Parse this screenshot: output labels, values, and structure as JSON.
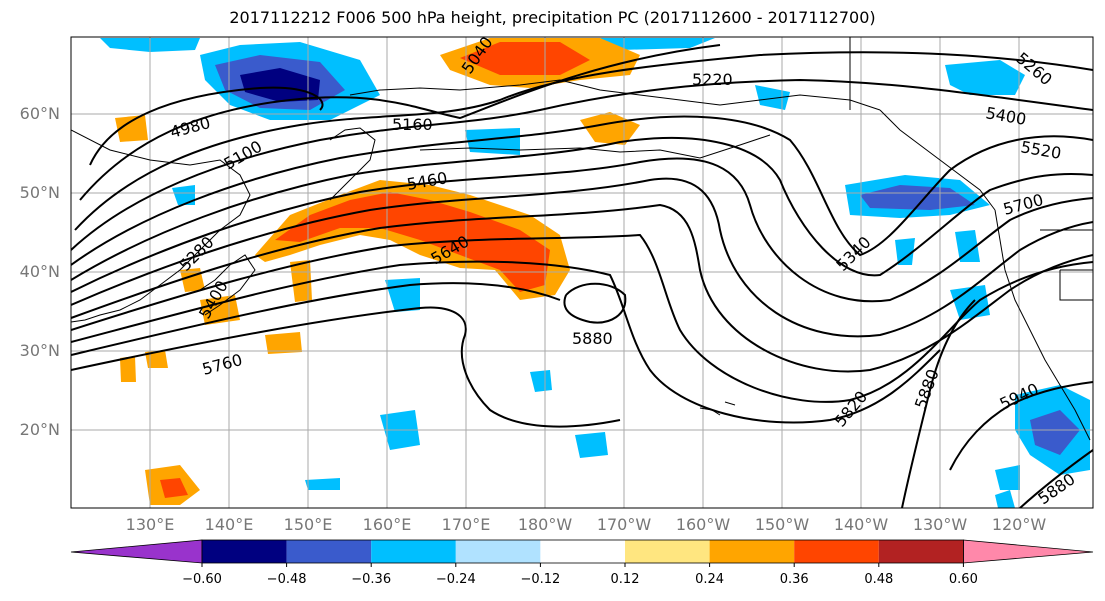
{
  "title": "2017112212 F006 500 hPa height, precipitation PC (2017112600 - 2017112700)",
  "lat_labels": [
    "60°N",
    "50°N",
    "40°N",
    "30°N",
    "20°N"
  ],
  "lon_labels": [
    "130°E",
    "140°E",
    "150°E",
    "160°E",
    "170°E",
    "180°W",
    "170°W",
    "160°W",
    "150°W",
    "140°W",
    "130°W",
    "120°W"
  ],
  "contour_labels": [
    "4980",
    "5100",
    "5040",
    "5160",
    "5220",
    "5260",
    "5400",
    "5520",
    "5460",
    "5280",
    "5640",
    "5400",
    "5700",
    "5340",
    "5760",
    "5880",
    "5820",
    "5880",
    "5940",
    "5880"
  ],
  "colorbar": {
    "tick_labels": [
      "−0.60",
      "−0.48",
      "−0.36",
      "−0.24",
      "−0.12",
      "0.12",
      "0.24",
      "0.36",
      "0.48",
      "0.60"
    ],
    "colors": [
      "#9933cc",
      "#000080",
      "#3a5bcc",
      "#00bfff",
      "#b0e2ff",
      "#ffffff",
      "#ffe680",
      "#ffa500",
      "#ff4500",
      "#b22222",
      "#ff88aa"
    ]
  },
  "colors": {
    "neg_dark": "#000080",
    "neg_mid": "#3a5bcc",
    "neg_light": "#00bfff",
    "neg_pale": "#b0e2ff",
    "pos_pale": "#ffe680",
    "pos_light": "#ffa500",
    "pos_mid": "#ff4500",
    "pos_dark": "#b22222"
  }
}
